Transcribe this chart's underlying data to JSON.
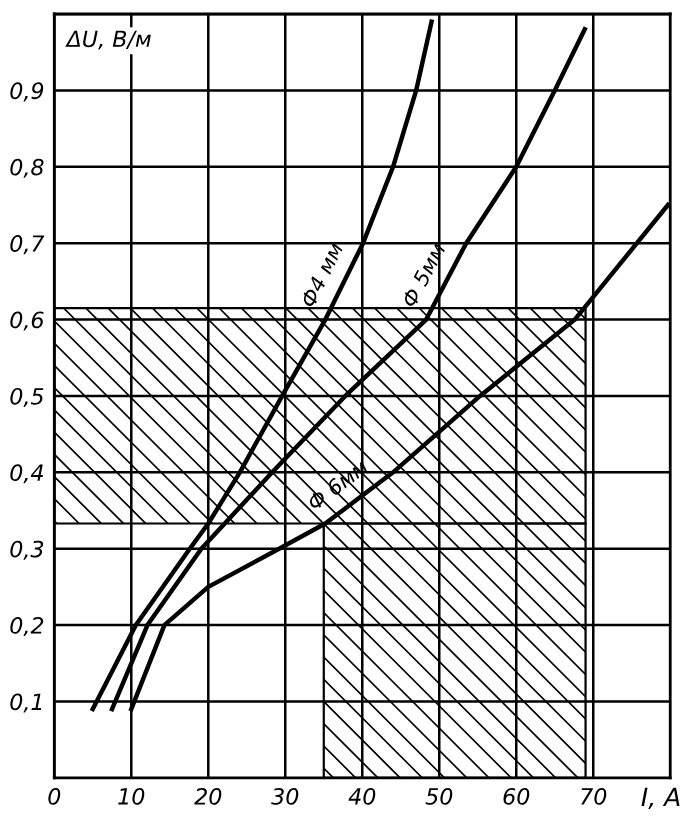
{
  "chart_data": {
    "type": "line",
    "xlabel": "I, A",
    "ylabel": "ΔU, В/м",
    "xlim": [
      0,
      80
    ],
    "ylim": [
      0,
      1
    ],
    "xticks": [
      0,
      10,
      20,
      30,
      40,
      50,
      60,
      70,
      {
        "value": 80,
        "label": null
      }
    ],
    "yticks": [
      {
        "value": 0.1,
        "label": "0,1"
      },
      {
        "value": 0.2,
        "label": "0,2"
      },
      {
        "value": 0.3,
        "label": "0,3"
      },
      {
        "value": 0.4,
        "label": "0,4"
      },
      {
        "value": 0.5,
        "label": "0,5"
      },
      {
        "value": 0.6,
        "label": "0,6"
      },
      {
        "value": 0.7,
        "label": "0,7"
      },
      {
        "value": 0.8,
        "label": "0,8"
      },
      {
        "value": 0.9,
        "label": "0,9"
      },
      {
        "value": 1.0,
        "label": null
      }
    ],
    "grid": true,
    "legend": false,
    "marker": "none",
    "line_style": "solid",
    "series": [
      {
        "name": "Ф4 мм",
        "color": "#000000",
        "x": [
          5.0,
          10.6,
          17.6,
          20.0,
          24.1,
          29.6,
          35.2,
          40.1,
          44.0,
          47.0,
          49.0
        ],
        "values": [
          0.09,
          0.2,
          0.3,
          0.333,
          0.4,
          0.5,
          0.6,
          0.7,
          0.8,
          0.9,
          0.99
        ]
      },
      {
        "name": "Ф 5мм",
        "color": "#000000",
        "x": [
          7.5,
          12.1,
          19.1,
          28.3,
          37.8,
          48.3,
          53.5,
          60.0,
          65.0,
          68.9
        ],
        "values": [
          0.09,
          0.2,
          0.3,
          0.4,
          0.5,
          0.6,
          0.7,
          0.8,
          0.9,
          0.98
        ]
      },
      {
        "name": "Ф 6мм",
        "color": "#000000",
        "x": [
          10.0,
          14.3,
          20.0,
          29.2,
          35.2,
          44.0,
          55.3,
          67.6,
          79.7
        ],
        "values": [
          0.09,
          0.2,
          0.25,
          0.3,
          0.333,
          0.4,
          0.5,
          0.6,
          0.75
        ]
      }
    ],
    "bands": [
      {
        "axis": "y",
        "from": 0.333,
        "to": 0.615,
        "color": "#000000"
      },
      {
        "axis": "x",
        "from": 35,
        "to": 69,
        "color": "#000000"
      }
    ]
  }
}
